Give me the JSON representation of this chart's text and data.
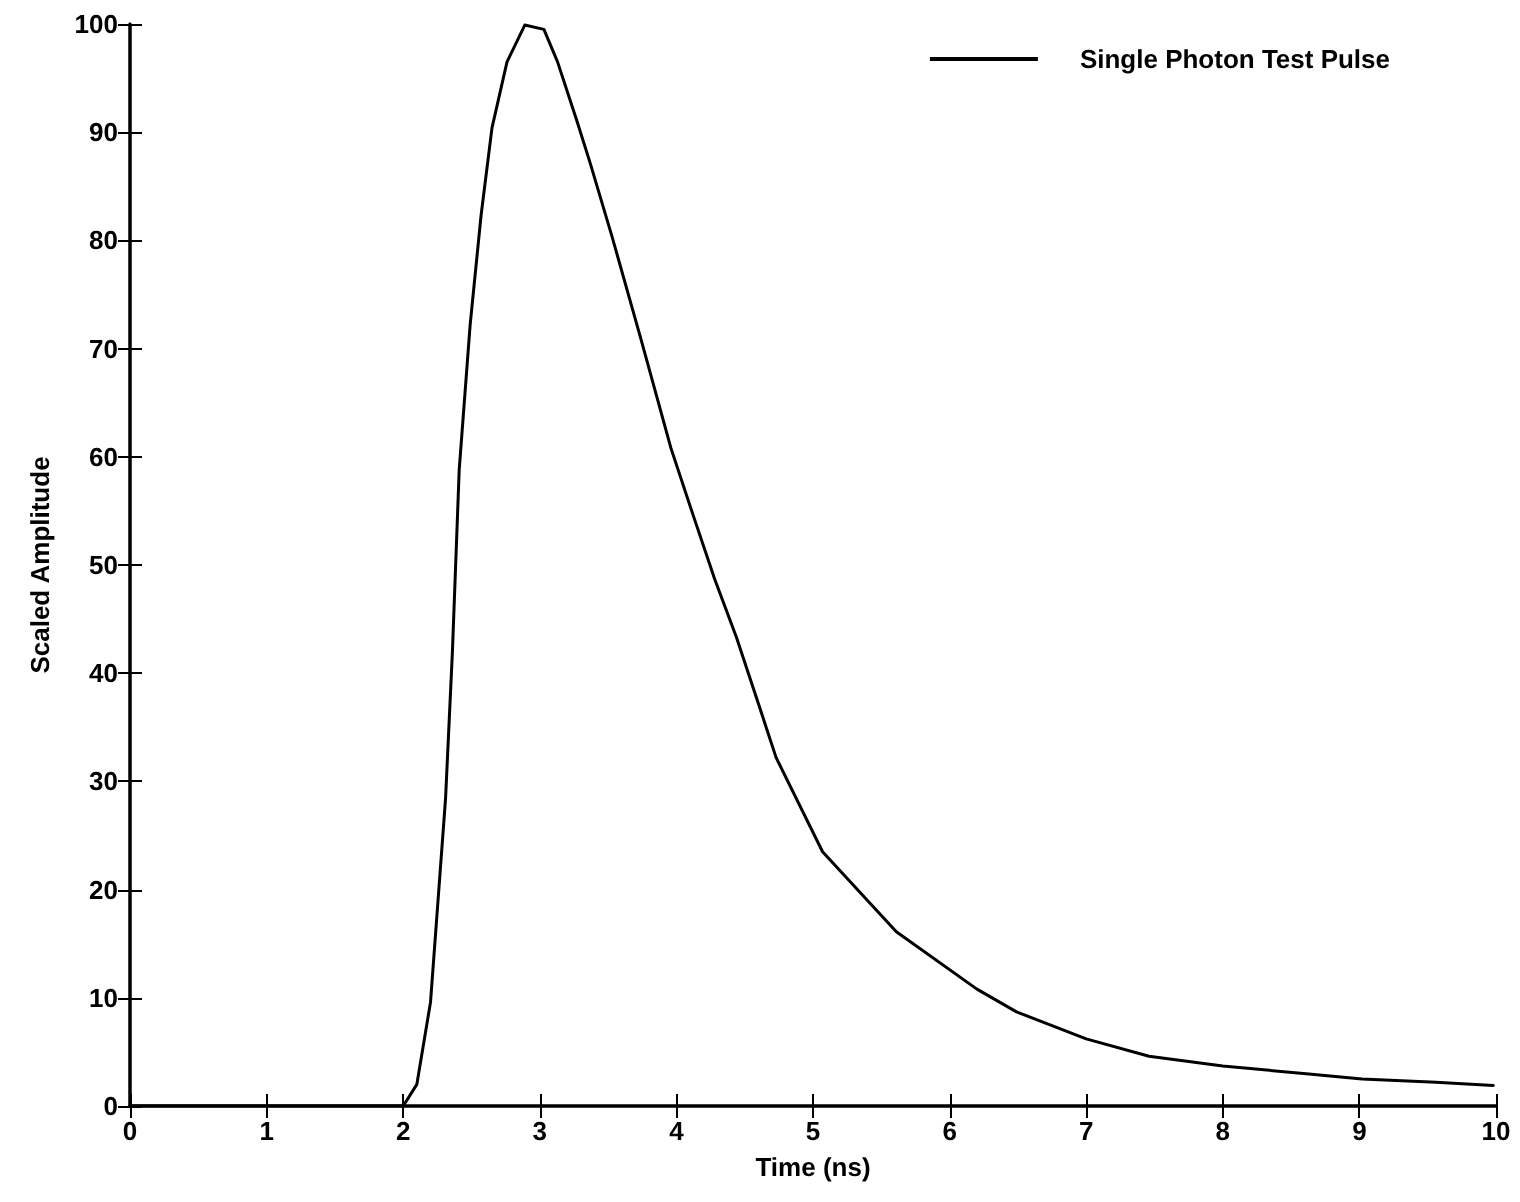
{
  "chart_data": {
    "type": "line",
    "xlabel": "Time (ns)",
    "ylabel": "Scaled Amplitude",
    "xlim": [
      0,
      10
    ],
    "xticks": [
      0,
      1,
      2,
      3,
      4,
      5,
      6,
      7,
      8,
      9,
      10
    ],
    "ylim": [
      0,
      100
    ],
    "yticks": [
      0,
      10,
      20,
      30,
      40,
      50,
      60,
      70,
      80,
      90,
      100
    ],
    "grid": false,
    "legend": "top right",
    "marker": "none",
    "line_style": "solid",
    "series": [
      {
        "name": "Single Photon Test Pulse",
        "color": "#000000",
        "x": [
          0,
          2.0,
          2.1,
          2.2,
          2.31,
          2.36,
          2.41,
          2.49,
          2.57,
          2.65,
          2.76,
          2.89,
          3.03,
          3.13,
          3.27,
          3.37,
          3.53,
          3.74,
          3.96,
          4.12,
          4.28,
          4.44,
          4.6,
          4.73,
          5.07,
          5.61,
          6.2,
          6.49,
          7.0,
          7.46,
          8.0,
          8.59,
          9.02,
          9.56,
          9.98
        ],
        "values": [
          0,
          0,
          2,
          9.6,
          28.4,
          41.9,
          58.8,
          72.2,
          82.3,
          90.4,
          96.5,
          99.9,
          99.5,
          96.5,
          91.1,
          87.1,
          80.3,
          70.9,
          60.8,
          54.7,
          48.7,
          43.3,
          37.2,
          32.2,
          23.5,
          16.1,
          10.8,
          8.7,
          6.2,
          4.6,
          3.7,
          3.0,
          2.5,
          2.2,
          1.9
        ]
      }
    ]
  }
}
